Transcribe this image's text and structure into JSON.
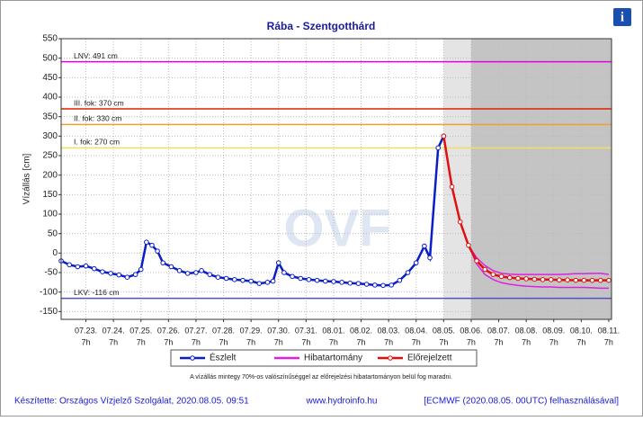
{
  "chart_data": {
    "type": "line",
    "title": "Rába - Szentgotthárd",
    "y_label": "Vízállás [cm]",
    "info_icon": "i",
    "watermark": "OVF",
    "xlim": [
      -0.9,
      19.1
    ],
    "ylim": [
      -170,
      550
    ],
    "grid": true,
    "yticks": [
      550,
      500,
      450,
      400,
      350,
      300,
      250,
      200,
      150,
      100,
      50,
      0,
      -50,
      -100,
      -150
    ],
    "xticks": [
      {
        "value": 0,
        "label": "07.23.",
        "hour": "7h"
      },
      {
        "value": 1,
        "label": "07.24.",
        "hour": "7h"
      },
      {
        "value": 2,
        "label": "07.25.",
        "hour": "7h"
      },
      {
        "value": 3,
        "label": "07.26.",
        "hour": "7h"
      },
      {
        "value": 4,
        "label": "07.27.",
        "hour": "7h"
      },
      {
        "value": 5,
        "label": "07.28.",
        "hour": "7h"
      },
      {
        "value": 6,
        "label": "07.29.",
        "hour": "7h"
      },
      {
        "value": 7,
        "label": "07.30.",
        "hour": "7h"
      },
      {
        "value": 8,
        "label": "07.31.",
        "hour": "7h"
      },
      {
        "value": 9,
        "label": "08.01.",
        "hour": "7h"
      },
      {
        "value": 10,
        "label": "08.02.",
        "hour": "7h"
      },
      {
        "value": 11,
        "label": "08.03.",
        "hour": "7h"
      },
      {
        "value": 12,
        "label": "08.04.",
        "hour": "7h"
      },
      {
        "value": 13,
        "label": "08.05.",
        "hour": "7h"
      },
      {
        "value": 14,
        "label": "08.06.",
        "hour": "7h"
      },
      {
        "value": 15,
        "label": "08.07.",
        "hour": "7h"
      },
      {
        "value": 16,
        "label": "08.08.",
        "hour": "7h"
      },
      {
        "value": 17,
        "label": "08.09.",
        "hour": "7h"
      },
      {
        "value": 18,
        "label": "08.10.",
        "hour": "7h"
      },
      {
        "value": 19,
        "label": "08.11.",
        "hour": "7h"
      }
    ],
    "shading": [
      {
        "from": 13,
        "to": 14,
        "color": "#e4e4e4"
      },
      {
        "from": 14,
        "to": 19.1,
        "color": "#c4c4c4"
      }
    ],
    "thresholds": [
      {
        "label": "LNV: 491 cm",
        "value": 491,
        "color": "#e000e0"
      },
      {
        "label": "III. fok: 370 cm",
        "value": 370,
        "color": "#e02000"
      },
      {
        "label": "II. fok: 330 cm",
        "value": 330,
        "color": "#f0a030"
      },
      {
        "label": "I. fok: 270 cm",
        "value": 270,
        "color": "#f0e060"
      },
      {
        "label": "LKV: -116 cm",
        "value": -116,
        "color": "#5050c0"
      }
    ],
    "series": [
      {
        "name": "Észlelt",
        "color": "#0a1ec8",
        "x": [
          -0.9,
          -0.6,
          -0.3,
          0,
          0.3,
          0.6,
          0.9,
          1.2,
          1.5,
          1.8,
          2.0,
          2.2,
          2.4,
          2.6,
          2.8,
          3.1,
          3.4,
          3.7,
          4.0,
          4.2,
          4.5,
          4.8,
          5.1,
          5.4,
          5.7,
          6.0,
          6.3,
          6.6,
          6.8,
          7.0,
          7.2,
          7.5,
          7.8,
          8.1,
          8.4,
          8.7,
          9.0,
          9.3,
          9.6,
          9.9,
          10.2,
          10.5,
          10.8,
          11.1,
          11.4,
          11.7,
          12.0,
          12.3,
          12.5,
          12.8,
          13.0
        ],
        "values": [
          -20,
          -30,
          -35,
          -33,
          -40,
          -48,
          -52,
          -56,
          -62,
          -55,
          -42,
          28,
          20,
          5,
          -25,
          -35,
          -45,
          -52,
          -50,
          -45,
          -55,
          -62,
          -65,
          -68,
          -70,
          -72,
          -78,
          -75,
          -72,
          -25,
          -50,
          -60,
          -65,
          -68,
          -70,
          -72,
          -73,
          -75,
          -77,
          -78,
          -80,
          -82,
          -83,
          -82,
          -70,
          -50,
          -25,
          18,
          -12,
          270,
          300
        ]
      },
      {
        "name": "Előrejelzett",
        "color": "#e01010",
        "x": [
          13.0,
          13.3,
          13.6,
          13.9,
          14.2,
          14.5,
          14.8,
          15.1,
          15.4,
          15.7,
          16.0,
          16.3,
          16.6,
          16.9,
          17.2,
          17.5,
          17.8,
          18.1,
          18.4,
          18.7,
          19.0
        ],
        "values": [
          300,
          170,
          80,
          20,
          -20,
          -42,
          -55,
          -60,
          -63,
          -65,
          -66,
          -67,
          -68,
          -68,
          -69,
          -69,
          -70,
          -70,
          -70,
          -70,
          -70
        ]
      }
    ],
    "band": {
      "name": "Hibatartomány",
      "color": "#e020e0",
      "x": [
        13.9,
        14.2,
        14.5,
        14.8,
        15.1,
        15.4,
        15.7,
        16.0,
        16.3,
        16.6,
        16.9,
        17.2,
        17.5,
        17.8,
        18.1,
        18.4,
        18.7,
        19.0
      ],
      "upper": [
        20,
        -12,
        -32,
        -45,
        -52,
        -54,
        -55,
        -55,
        -55,
        -55,
        -55,
        -55,
        -54,
        -53,
        -53,
        -52,
        -52,
        -55
      ],
      "lower": [
        20,
        -28,
        -55,
        -68,
        -76,
        -80,
        -83,
        -85,
        -86,
        -87,
        -87,
        -88,
        -88,
        -88,
        -88,
        -89,
        -90,
        -90
      ]
    },
    "legend_order": [
      "series.0",
      "band",
      "series.1"
    ],
    "note": "A vízállás mintegy 70%-os valószínűséggel az előrejelzési hibatartományon belül fog maradni.",
    "footer": {
      "author": "Készítette: Országos Vízjelző Szolgálat, 2020.08.05. 09:51",
      "url": "www.hydroinfo.hu",
      "model": "[ECMWF (2020.08.05. 00UTC) felhasználásával]"
    }
  }
}
